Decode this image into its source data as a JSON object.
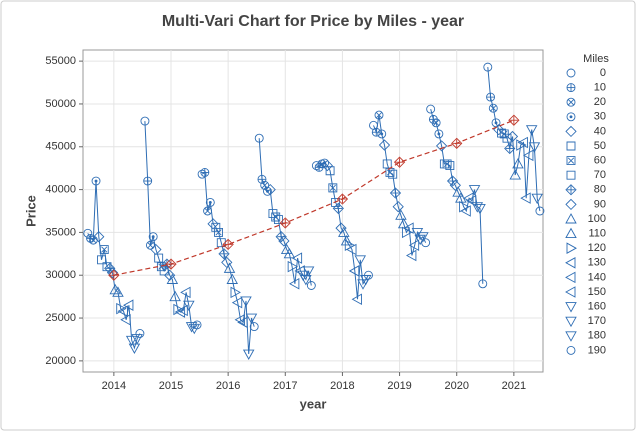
{
  "chart_data": {
    "type": "multi-vari",
    "title": "Multi-Vari Chart for Price by Miles - year",
    "x_label": "year",
    "y_label": "Price",
    "legend_title": "Miles",
    "x": [
      2014,
      2015,
      2016,
      2017,
      2018,
      2019,
      2020,
      2021
    ],
    "miles": [
      0,
      10,
      20,
      30,
      40,
      50,
      60,
      70,
      80,
      90,
      100,
      110,
      120,
      130,
      140,
      150,
      160,
      170,
      180,
      190
    ],
    "markers": [
      "circle",
      "circle-plus",
      "circle-x",
      "circle-dot",
      "diamond",
      "square",
      "square-x",
      "square",
      "diamond-plus",
      "diamond",
      "triangle-up",
      "triangle-up",
      "triangle-right",
      "triangle-left",
      "triangle-left",
      "triangle-left",
      "triangle-down",
      "triangle-down",
      "triangle-down",
      "circle"
    ],
    "values": [
      [
        34900,
        34300,
        34100,
        41000,
        34500,
        31800,
        33000,
        31000,
        30800,
        30300,
        28300,
        28000,
        26100,
        25800,
        24800,
        26500,
        22400,
        21500,
        22600,
        23200
      ],
      [
        48000,
        41000,
        33500,
        34500,
        33000,
        32000,
        31000,
        30500,
        31300,
        30000,
        29500,
        27500,
        26000,
        25700,
        25900,
        28000,
        26500,
        24000,
        23800,
        24200
      ],
      [
        41800,
        42000,
        37500,
        38500,
        36000,
        35600,
        35000,
        33800,
        32500,
        31500,
        30800,
        29500,
        28000,
        26800,
        24800,
        24500,
        27000,
        20800,
        25000,
        24000
      ],
      [
        46000,
        41200,
        40500,
        39800,
        40000,
        37200,
        36800,
        36500,
        34500,
        34000,
        33000,
        32500,
        31000,
        29000,
        32000,
        30500,
        30000,
        29500,
        30500,
        28800
      ],
      [
        42800,
        42600,
        43000,
        43100,
        42800,
        42200,
        40200,
        38500,
        37800,
        35500,
        35000,
        34000,
        33500,
        33000,
        30500,
        27200,
        31800,
        29000,
        29500,
        30000
      ],
      [
        47500,
        46700,
        48700,
        46500,
        45200,
        43000,
        42000,
        41800,
        39600,
        38000,
        37000,
        36000,
        35000,
        35500,
        32300,
        33500,
        35000,
        34200,
        34500,
        33800
      ],
      [
        49400,
        48200,
        47800,
        46500,
        45100,
        43000,
        43000,
        42800,
        41000,
        40500,
        39700,
        39000,
        38000,
        37500,
        39000,
        38700,
        40000,
        38000,
        37800,
        29000
      ],
      [
        54300,
        50800,
        49500,
        47800,
        47000,
        46600,
        46500,
        46000,
        44800,
        46200,
        41700,
        43000,
        45200,
        45500,
        39000,
        44000,
        47000,
        45000,
        39000,
        37500
      ]
    ],
    "means": [
      30000,
      31300,
      33600,
      36100,
      38900,
      43200,
      45400,
      48100
    ],
    "point_color": "#2e6db4",
    "mean_color": "#c0392b",
    "xlim": [
      2013.46,
      2021.51
    ],
    "xticks": [
      2014,
      2015,
      2016,
      2017,
      2018,
      2019,
      2020,
      2021
    ],
    "ylim": [
      18700,
      56300
    ],
    "yticks": [
      20000,
      25000,
      30000,
      35000,
      40000,
      45000,
      50000,
      55000
    ],
    "grid": true
  }
}
